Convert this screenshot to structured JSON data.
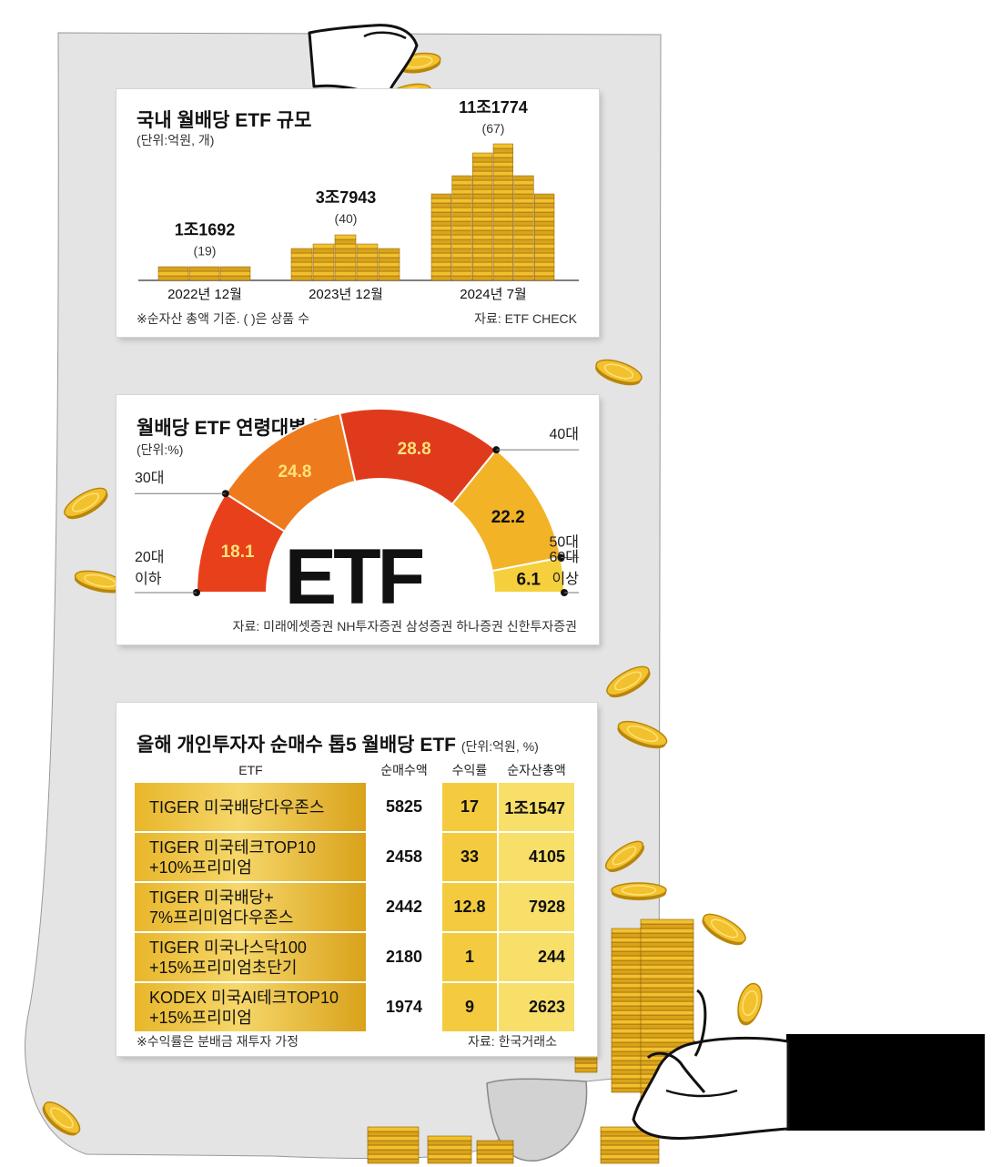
{
  "chart_data": [
    {
      "type": "bar",
      "title": "국내 월배당 ETF 규모",
      "unit_note": "(단위:억원, 개)",
      "categories": [
        "2022년 12월",
        "2023년 12월",
        "2024년 7월"
      ],
      "values": [
        11692,
        37943,
        111774
      ],
      "value_labels": [
        "1조1692",
        "3조7943",
        "11조1774"
      ],
      "count_labels": [
        "(19)",
        "(40)",
        "(67)"
      ],
      "product_counts": [
        19,
        40,
        67
      ],
      "footnote": "※순자산 총액 기준. ( )은 상품 수",
      "source": "자료: ETF CHECK"
    },
    {
      "type": "pie",
      "title": "월배당 ETF 연령대별 투자자 비중",
      "unit_note": "(단위:%)",
      "categories": [
        "20대 이하",
        "30대",
        "40대",
        "50대",
        "60대 이상"
      ],
      "labels": {
        "a20_line1": "20대",
        "a20_line2": "이하",
        "a30": "30대",
        "a40": "40대",
        "a50": "50대",
        "a60_line1": "60대",
        "a60_line2": "이상"
      },
      "values": [
        18.1,
        24.8,
        28.8,
        22.2,
        6.1
      ],
      "value_labels": [
        "18.1",
        "24.8",
        "28.8",
        "22.2",
        "6.1"
      ],
      "center_label": "ETF",
      "source": "자료: 미래에셋증권 NH투자증권 삼성증권 하나증권 신한투자증권"
    },
    {
      "type": "table",
      "title": "올해 개인투자자 순매수 톱5 월배당 ETF",
      "unit_note": "(단위:억원, %)",
      "columns": [
        "ETF",
        "순매수액",
        "수익률",
        "순자산총액"
      ],
      "rows": [
        {
          "name1": "TIGER 미국배당다우존스",
          "name2": "",
          "net_buy": "5825",
          "return": "17",
          "aum": "1조1547"
        },
        {
          "name1": "TIGER 미국테크TOP10",
          "name2": "+10%프리미엄",
          "net_buy": "2458",
          "return": "33",
          "aum": "4105"
        },
        {
          "name1": "TIGER 미국배당+",
          "name2": "7%프리미엄다우존스",
          "net_buy": "2442",
          "return": "12.8",
          "aum": "7928"
        },
        {
          "name1": "TIGER 미국나스닥100",
          "name2": "+15%프리미엄초단기",
          "net_buy": "2180",
          "return": "1",
          "aum": "244"
        },
        {
          "name1": "KODEX 미국AI테크TOP10",
          "name2": "+15%프리미엄",
          "net_buy": "1974",
          "return": "9",
          "aum": "2623"
        }
      ],
      "footnote": "※수익률은 분배금 재투자 가정",
      "source": "자료: 한국거래소"
    }
  ],
  "colors": {
    "gold": "#f2c12e",
    "gold_dark": "#b8860b",
    "gold_light": "#ffe27a",
    "paper_gray": "#e4e4e4",
    "seg1": "#e8401a",
    "seg2": "#ee7a1e",
    "seg3": "#e03a1c",
    "seg4": "#f2b327",
    "seg5": "#f5d03c",
    "ink": "#111111"
  }
}
